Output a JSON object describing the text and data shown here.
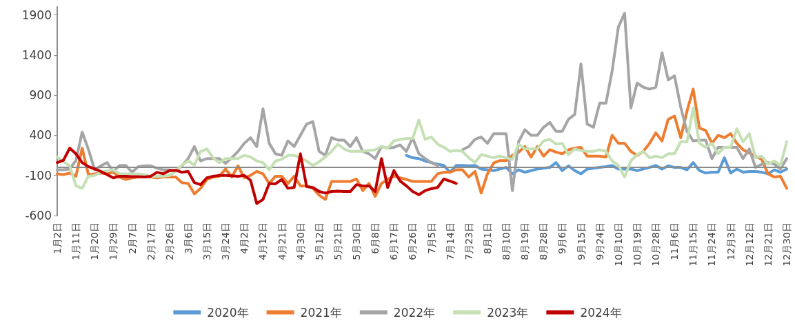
{
  "chart_data": {
    "type": "line",
    "categories": [
      "1月2日",
      null,
      null,
      "1月11日",
      null,
      null,
      "1月20日",
      null,
      null,
      "1月29日",
      null,
      null,
      "2月7日",
      null,
      null,
      "2月17日",
      null,
      null,
      "2月26日",
      null,
      null,
      "3月6日",
      null,
      null,
      "3月15日",
      null,
      null,
      "3月24日",
      null,
      null,
      "4月2日",
      null,
      null,
      "4月12日",
      null,
      null,
      "4月21日",
      null,
      null,
      "4月30日",
      null,
      null,
      "5月12日",
      null,
      null,
      "5月21日",
      null,
      null,
      "5月30日",
      null,
      null,
      "6月8日",
      null,
      null,
      "6月17日",
      null,
      null,
      "6月26日",
      null,
      null,
      "7月5日",
      null,
      null,
      "7月14日",
      null,
      null,
      "7月23日",
      null,
      null,
      "8月1日",
      null,
      null,
      "8月10日",
      null,
      null,
      "8月19日",
      null,
      null,
      "8月28日",
      null,
      null,
      "9月6日",
      null,
      null,
      "9月15日",
      null,
      null,
      "9月24日",
      null,
      null,
      "10月10日",
      null,
      null,
      "10月19日",
      null,
      null,
      "10月28日",
      null,
      null,
      "11月6日",
      null,
      null,
      "11月15日",
      null,
      null,
      "11月24日",
      null,
      null,
      "12月3日",
      null,
      null,
      "12月12日",
      null,
      null,
      "12月21日",
      null,
      null,
      "12月30日"
    ],
    "series": [
      {
        "name": "2020年",
        "color": "#5b9bd5",
        "values": [
          null,
          null,
          null,
          null,
          null,
          null,
          null,
          null,
          null,
          null,
          null,
          null,
          null,
          null,
          null,
          null,
          null,
          null,
          null,
          null,
          null,
          null,
          null,
          null,
          null,
          null,
          null,
          null,
          null,
          null,
          null,
          null,
          null,
          null,
          null,
          null,
          null,
          null,
          null,
          null,
          null,
          null,
          null,
          null,
          null,
          null,
          null,
          null,
          null,
          null,
          null,
          null,
          null,
          null,
          null,
          null,
          150,
          120,
          110,
          80,
          60,
          40,
          25,
          -60,
          25,
          25,
          20,
          25,
          -20,
          -30,
          -40,
          -20,
          0,
          -80,
          -30,
          -60,
          -40,
          -20,
          -10,
          0,
          60,
          -40,
          20,
          -40,
          -80,
          -20,
          -10,
          0,
          10,
          25,
          -20,
          -20,
          -20,
          -40,
          -20,
          0,
          25,
          -20,
          20,
          0,
          0,
          -30,
          60,
          -40,
          -70,
          -60,
          -60,
          120,
          -70,
          -20,
          -60,
          -50,
          -50,
          -60,
          -80,
          -30,
          -60,
          -20
        ]
      },
      {
        "name": "2021年",
        "color": "#ed7d31",
        "values": [
          -80,
          -90,
          -70,
          -110,
          240,
          -90,
          -80,
          -70,
          -80,
          -60,
          -120,
          -150,
          -130,
          -120,
          -110,
          -120,
          -130,
          -120,
          -120,
          -120,
          -190,
          -200,
          -330,
          -260,
          -150,
          -120,
          -110,
          -20,
          -120,
          20,
          -130,
          -100,
          -50,
          -80,
          -200,
          -110,
          -110,
          -200,
          -110,
          -230,
          -230,
          -260,
          -345,
          -400,
          -175,
          -175,
          -175,
          -175,
          -145,
          -290,
          -200,
          -360,
          -200,
          -150,
          -110,
          -130,
          -150,
          -175,
          -175,
          -175,
          -175,
          -80,
          -60,
          -60,
          -30,
          -30,
          -120,
          -50,
          -320,
          -80,
          55,
          85,
          85,
          150,
          190,
          260,
          130,
          260,
          140,
          220,
          190,
          170,
          220,
          240,
          250,
          140,
          140,
          140,
          130,
          400,
          300,
          300,
          200,
          150,
          200,
          300,
          430,
          330,
          600,
          640,
          370,
          700,
          975,
          490,
          460,
          300,
          400,
          370,
          420,
          300,
          220,
          180,
          140,
          100,
          -80,
          -120,
          -110,
          -260
        ]
      },
      {
        "name": "2022年",
        "color": "#a5a5a5",
        "values": [
          -30,
          -30,
          -20,
          85,
          440,
          225,
          -30,
          20,
          60,
          -50,
          25,
          25,
          -60,
          10,
          20,
          20,
          -10,
          -30,
          -30,
          -50,
          20,
          110,
          260,
          80,
          110,
          110,
          110,
          50,
          120,
          200,
          300,
          370,
          260,
          730,
          300,
          170,
          150,
          330,
          260,
          400,
          540,
          570,
          200,
          150,
          370,
          340,
          340,
          260,
          370,
          200,
          170,
          110,
          260,
          240,
          250,
          280,
          200,
          370,
          170,
          110,
          60,
          25,
          null,
          null,
          null,
          220,
          260,
          350,
          380,
          300,
          420,
          420,
          420,
          -290,
          320,
          470,
          400,
          400,
          500,
          560,
          450,
          450,
          600,
          660,
          1290,
          540,
          500,
          800,
          800,
          1200,
          1750,
          1920,
          740,
          1050,
          1000,
          975,
          1000,
          1430,
          1090,
          1140,
          750,
          450,
          330,
          340,
          340,
          110,
          250,
          250,
          250,
          250,
          110,
          230,
          0,
          40,
          60,
          40,
          -20,
          110
        ]
      },
      {
        "name": "2023年",
        "color": "#c5e0b4",
        "values": [
          130,
          70,
          20,
          -230,
          -260,
          -110,
          -100,
          -60,
          -40,
          -30,
          -80,
          -80,
          -80,
          -80,
          -90,
          -110,
          -110,
          -110,
          -100,
          -50,
          30,
          80,
          30,
          200,
          230,
          120,
          60,
          110,
          110,
          110,
          150,
          130,
          80,
          60,
          -30,
          80,
          100,
          150,
          150,
          120,
          80,
          25,
          70,
          130,
          200,
          290,
          230,
          200,
          200,
          200,
          210,
          220,
          260,
          240,
          330,
          350,
          360,
          360,
          590,
          350,
          380,
          290,
          250,
          200,
          210,
          200,
          120,
          60,
          160,
          140,
          120,
          140,
          120,
          100,
          290,
          230,
          230,
          230,
          330,
          350,
          290,
          300,
          160,
          230,
          210,
          200,
          200,
          220,
          200,
          80,
          25,
          -120,
          80,
          160,
          200,
          120,
          140,
          120,
          170,
          170,
          320,
          320,
          740,
          300,
          250,
          300,
          170,
          250,
          250,
          480,
          320,
          420,
          120,
          140,
          40,
          80,
          25,
          320
        ]
      },
      {
        "name": "2024年",
        "color": "#c00000",
        "values": [
          60,
          90,
          240,
          170,
          60,
          10,
          -20,
          -50,
          -90,
          -130,
          -110,
          -110,
          -115,
          -115,
          -120,
          -110,
          -60,
          -80,
          -40,
          -35,
          -60,
          -50,
          -190,
          -215,
          -130,
          -110,
          -100,
          -100,
          -105,
          -110,
          -100,
          -160,
          -450,
          -400,
          -200,
          -205,
          -150,
          -260,
          -250,
          170,
          -240,
          -250,
          -300,
          -320,
          -300,
          -295,
          -300,
          -300,
          -215,
          -230,
          -230,
          -300,
          110,
          -250,
          -40,
          -170,
          -230,
          -300,
          -340,
          -290,
          -265,
          -250,
          -145,
          -170,
          -200,
          null,
          null,
          null,
          null,
          null,
          null,
          null,
          null,
          null,
          null,
          null,
          null,
          null,
          null,
          null,
          null,
          null,
          null,
          null,
          null,
          null,
          null,
          null,
          null,
          null,
          null,
          null,
          null,
          null,
          null,
          null,
          null,
          null,
          null,
          null,
          null,
          null,
          null,
          null,
          null,
          null,
          null,
          null,
          null,
          null,
          null,
          null,
          null,
          null,
          null,
          null,
          null,
          null
        ]
      }
    ],
    "ylim": [
      -600,
      2000
    ],
    "yticks": [
      -600,
      -100,
      400,
      900,
      1400,
      1900
    ],
    "ref_lines": [
      {
        "axis": "y",
        "value": 0,
        "color": "#8c8c8c"
      }
    ],
    "grid": false,
    "legend": "bottom",
    "marker": "none",
    "line_style": "solid"
  }
}
